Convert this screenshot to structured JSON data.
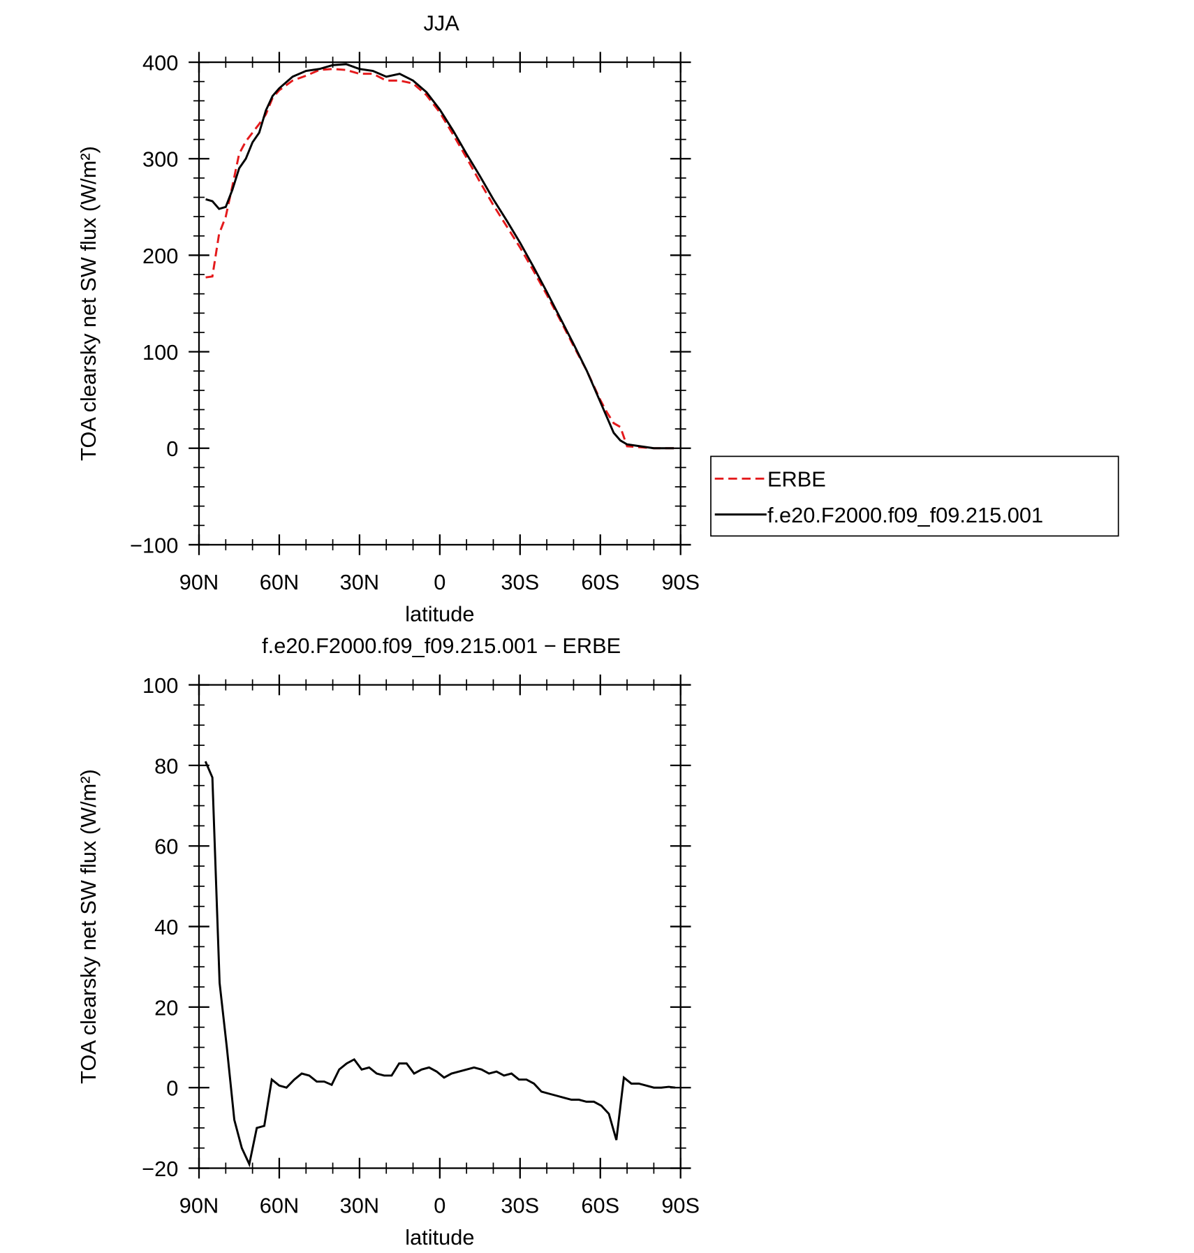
{
  "chart_data": [
    {
      "type": "line",
      "title": "JJA",
      "xlabel": "latitude",
      "ylabel": "TOA clearsky net SW flux (W/m²)",
      "x": [
        87.5,
        85,
        82.5,
        80,
        77.5,
        75,
        72.5,
        70,
        67.5,
        65,
        62.5,
        60,
        55,
        50,
        45,
        40,
        35,
        30,
        25,
        20,
        15,
        10,
        5,
        0,
        -5,
        -10,
        -15,
        -20,
        -25,
        -30,
        -35,
        -40,
        -45,
        -50,
        -55,
        -60,
        -62.5,
        -65,
        -67.5,
        -70,
        -75,
        -80,
        -85,
        -87.5
      ],
      "series": [
        {
          "name": "ERBE",
          "color": "#e41a1c",
          "line_style": "dashed",
          "values": [
            177,
            178,
            222,
            240,
            272,
            305,
            318,
            327,
            336,
            346,
            363,
            371,
            381,
            386,
            392,
            393,
            392,
            388,
            388,
            381,
            381,
            378,
            366,
            348,
            325,
            301,
            276,
            252,
            230,
            208,
            184,
            159,
            133,
            106,
            80,
            50,
            37,
            26,
            22,
            2,
            1,
            0,
            0,
            0
          ]
        },
        {
          "name": "f.e20.F2000.f09_f09.215.001",
          "color": "#000000",
          "line_style": "solid",
          "values": [
            258,
            256,
            248,
            250,
            268,
            290,
            300,
            317,
            327,
            350,
            365,
            373,
            385,
            391,
            393,
            397,
            398,
            393,
            391,
            385,
            388,
            381,
            369,
            351,
            329,
            305,
            282,
            258,
            236,
            213,
            188,
            162,
            135,
            108,
            80,
            48,
            32,
            16,
            8,
            4,
            2,
            0,
            0,
            0
          ]
        }
      ],
      "xlim": [
        90,
        -90
      ],
      "xticks": [
        {
          "value": 90,
          "label": "90N"
        },
        {
          "value": 60,
          "label": "60N"
        },
        {
          "value": 30,
          "label": "30N"
        },
        0,
        {
          "value": -30,
          "label": "30S"
        },
        {
          "value": -60,
          "label": "60S"
        },
        {
          "value": -90,
          "label": "90S"
        }
      ],
      "ylim": [
        -100,
        400
      ],
      "yticks": [
        {
          "value": -100,
          "label": "−100"
        },
        0,
        100,
        200,
        300,
        400
      ],
      "legend": "right"
    },
    {
      "type": "line",
      "title": "f.e20.F2000.f09_f09.215.001 − ERBE",
      "xlabel": "latitude",
      "ylabel": "TOA clearsky net SW flux (W/m²)",
      "x": [
        87.6,
        85,
        82.3,
        79.6,
        76.8,
        74,
        71.2,
        68.4,
        65.6,
        62.8,
        60,
        57.3,
        54.4,
        51.6,
        48.8,
        46,
        43.2,
        40.4,
        37.6,
        34.8,
        32,
        29.2,
        26.4,
        23.6,
        20.8,
        18,
        15.2,
        12.4,
        9.6,
        6.8,
        4,
        1.2,
        -1.6,
        -4.4,
        -7.2,
        -10,
        -12.8,
        -15.6,
        -18.4,
        -21.2,
        -24,
        -26.8,
        -29.6,
        -32.4,
        -35.2,
        -38,
        -40.8,
        -43.6,
        -46.4,
        -49.2,
        -52,
        -54.8,
        -57.6,
        -60.4,
        -63.2,
        -66,
        -68.8,
        -71.6,
        -74.4,
        -77.2,
        -80,
        -82.8,
        -85.6,
        -88
      ],
      "series": [
        {
          "color": "#000000",
          "line_style": "solid",
          "values": [
            81,
            77,
            26,
            10,
            -8,
            -15,
            -19,
            -10,
            -9.5,
            2,
            0.5,
            0,
            2,
            3.5,
            3,
            1.5,
            1.5,
            0.7,
            4.5,
            6,
            7,
            4.5,
            5,
            3.5,
            3,
            3,
            6,
            6,
            3.5,
            4.5,
            5,
            4,
            2.5,
            3.5,
            4,
            4.5,
            5,
            4.5,
            3.5,
            4,
            3,
            3.5,
            2,
            2,
            1,
            -1,
            -1.5,
            -2,
            -2.5,
            -3,
            -3,
            -3.5,
            -3.5,
            -4.5,
            -6.5,
            -13,
            2.5,
            1,
            1,
            0.5,
            0,
            0,
            0.2,
            0
          ]
        }
      ],
      "xlim": [
        90,
        -90
      ],
      "xticks": [
        {
          "value": 90,
          "label": "90N"
        },
        {
          "value": 60,
          "label": "60N"
        },
        {
          "value": 30,
          "label": "30N"
        },
        0,
        {
          "value": -30,
          "label": "30S"
        },
        {
          "value": -60,
          "label": "60S"
        },
        {
          "value": -90,
          "label": "90S"
        }
      ],
      "ylim": [
        -20,
        100
      ],
      "yticks": [
        {
          "value": -20,
          "label": "−20"
        },
        0,
        20,
        40,
        60,
        80,
        100
      ]
    }
  ]
}
